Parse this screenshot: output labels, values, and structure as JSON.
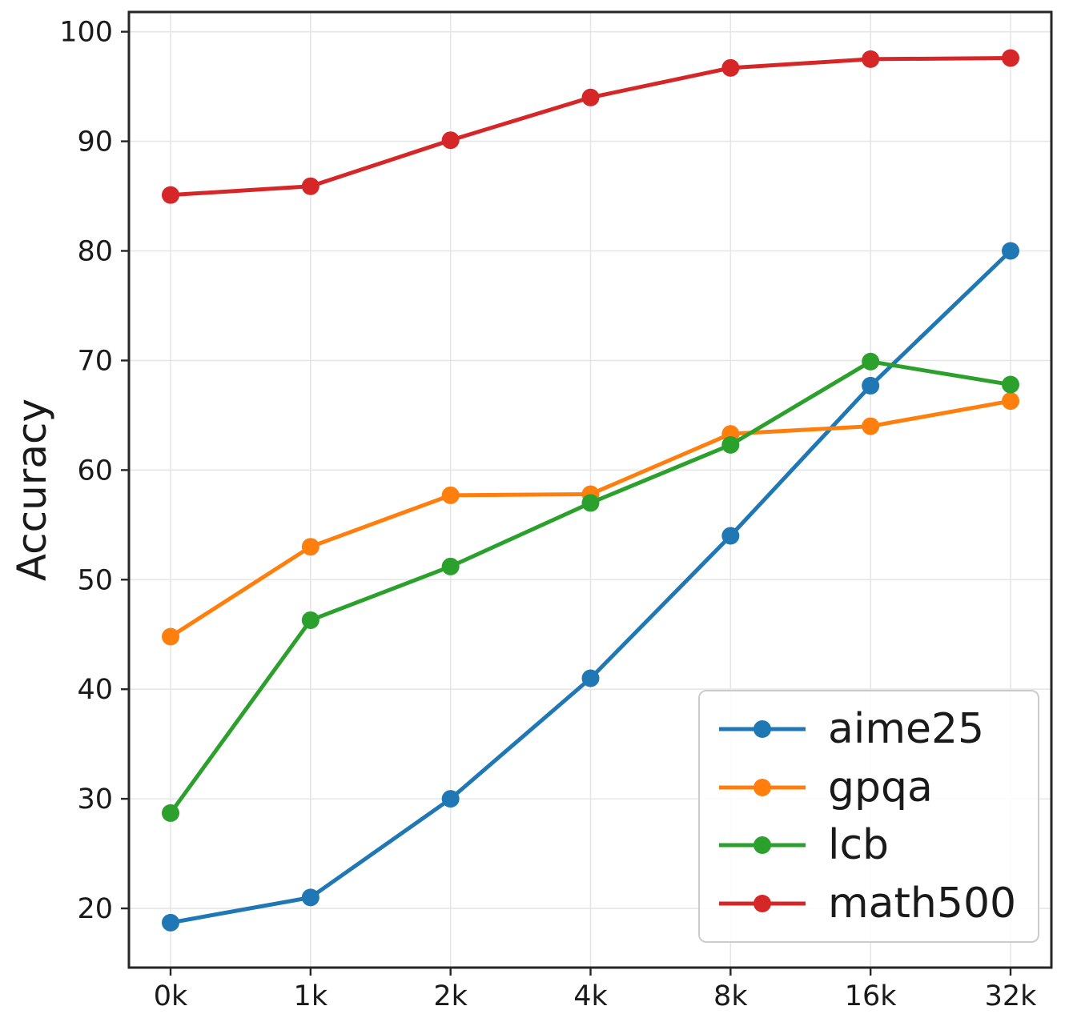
{
  "chart_data": {
    "type": "line",
    "title": "",
    "xlabel": "",
    "ylabel": "Accuracy",
    "categories": [
      "0k",
      "1k",
      "2k",
      "4k",
      "8k",
      "16k",
      "32k"
    ],
    "series": [
      {
        "name": "aime25",
        "color": "#1f77b4",
        "values": [
          18.7,
          21.0,
          30.0,
          41.0,
          54.0,
          67.7,
          80.0
        ]
      },
      {
        "name": "gpqa",
        "color": "#ff7f0e",
        "values": [
          44.8,
          53.0,
          57.7,
          57.8,
          63.3,
          64.0,
          66.3
        ]
      },
      {
        "name": "lcb",
        "color": "#2ca02c",
        "values": [
          28.7,
          46.3,
          51.2,
          57.0,
          62.3,
          69.9,
          67.8
        ]
      },
      {
        "name": "math500",
        "color": "#d62728",
        "values": [
          85.1,
          85.9,
          90.1,
          94.0,
          96.7,
          97.5,
          97.6
        ]
      }
    ],
    "yticks": [
      20,
      30,
      40,
      50,
      60,
      70,
      80,
      90,
      100
    ],
    "ylim": [
      14.6,
      101.8
    ],
    "grid": true,
    "legend_position": "lower right",
    "marker": "circle"
  }
}
